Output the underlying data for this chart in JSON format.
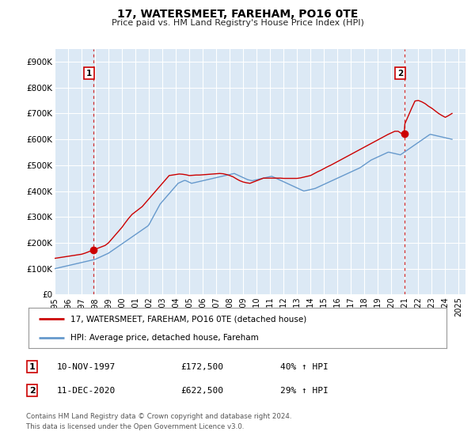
{
  "title": "17, WATERSMEET, FAREHAM, PO16 0TE",
  "subtitle": "Price paid vs. HM Land Registry's House Price Index (HPI)",
  "bg_color": "#ffffff",
  "plot_bg_color": "#dce9f5",
  "grid_color": "#ffffff",
  "xlim": [
    1995.0,
    2025.5
  ],
  "ylim": [
    0,
    950000
  ],
  "yticks": [
    0,
    100000,
    200000,
    300000,
    400000,
    500000,
    600000,
    700000,
    800000,
    900000
  ],
  "ytick_labels": [
    "£0",
    "£100K",
    "£200K",
    "£300K",
    "£400K",
    "£500K",
    "£600K",
    "£700K",
    "£800K",
    "£900K"
  ],
  "xticks": [
    1995,
    1996,
    1997,
    1998,
    1999,
    2000,
    2001,
    2002,
    2003,
    2004,
    2005,
    2006,
    2007,
    2008,
    2009,
    2010,
    2011,
    2012,
    2013,
    2014,
    2015,
    2016,
    2017,
    2018,
    2019,
    2020,
    2021,
    2022,
    2023,
    2024,
    2025
  ],
  "sale1_x": 1997.86,
  "sale1_y": 172500,
  "sale1_label": "1",
  "sale1_date": "10-NOV-1997",
  "sale1_price": "£172,500",
  "sale1_hpi": "40% ↑ HPI",
  "sale2_x": 2020.95,
  "sale2_y": 622500,
  "sale2_label": "2",
  "sale2_date": "11-DEC-2020",
  "sale2_price": "£622,500",
  "sale2_hpi": "29% ↑ HPI",
  "property_color": "#cc0000",
  "hpi_color": "#6699cc",
  "legend_label1": "17, WATERSMEET, FAREHAM, PO16 0TE (detached house)",
  "legend_label2": "HPI: Average price, detached house, Fareham",
  "footer1": "Contains HM Land Registry data © Crown copyright and database right 2024.",
  "footer2": "This data is licensed under the Open Government Licence v3.0.",
  "hpi_x": [
    1995.0,
    1995.083,
    1995.167,
    1995.25,
    1995.333,
    1995.417,
    1995.5,
    1995.583,
    1995.667,
    1995.75,
    1995.833,
    1995.917,
    1996.0,
    1996.083,
    1996.167,
    1996.25,
    1996.333,
    1996.417,
    1996.5,
    1996.583,
    1996.667,
    1996.75,
    1996.833,
    1996.917,
    1997.0,
    1997.083,
    1997.167,
    1997.25,
    1997.333,
    1997.417,
    1997.5,
    1997.583,
    1997.667,
    1997.75,
    1997.833,
    1997.917,
    1998.0,
    1998.083,
    1998.167,
    1998.25,
    1998.333,
    1998.417,
    1998.5,
    1998.583,
    1998.667,
    1998.75,
    1998.833,
    1998.917,
    1999.0,
    1999.083,
    1999.167,
    1999.25,
    1999.333,
    1999.417,
    1999.5,
    1999.583,
    1999.667,
    1999.75,
    1999.833,
    1999.917,
    2000.0,
    2000.083,
    2000.167,
    2000.25,
    2000.333,
    2000.417,
    2000.5,
    2000.583,
    2000.667,
    2000.75,
    2000.833,
    2000.917,
    2001.0,
    2001.083,
    2001.167,
    2001.25,
    2001.333,
    2001.417,
    2001.5,
    2001.583,
    2001.667,
    2001.75,
    2001.833,
    2001.917,
    2002.0,
    2002.083,
    2002.167,
    2002.25,
    2002.333,
    2002.417,
    2002.5,
    2002.583,
    2002.667,
    2002.75,
    2002.833,
    2002.917,
    2003.0,
    2003.083,
    2003.167,
    2003.25,
    2003.333,
    2003.417,
    2003.5,
    2003.583,
    2003.667,
    2003.75,
    2003.833,
    2003.917,
    2004.0,
    2004.083,
    2004.167,
    2004.25,
    2004.333,
    2004.417,
    2004.5,
    2004.583,
    2004.667,
    2004.75,
    2004.833,
    2004.917,
    2005.0,
    2005.083,
    2005.167,
    2005.25,
    2005.333,
    2005.417,
    2005.5,
    2005.583,
    2005.667,
    2005.75,
    2005.833,
    2005.917,
    2006.0,
    2006.083,
    2006.167,
    2006.25,
    2006.333,
    2006.417,
    2006.5,
    2006.583,
    2006.667,
    2006.75,
    2006.833,
    2006.917,
    2007.0,
    2007.083,
    2007.167,
    2007.25,
    2007.333,
    2007.417,
    2007.5,
    2007.583,
    2007.667,
    2007.75,
    2007.833,
    2007.917,
    2008.0,
    2008.083,
    2008.167,
    2008.25,
    2008.333,
    2008.417,
    2008.5,
    2008.583,
    2008.667,
    2008.75,
    2008.833,
    2008.917,
    2009.0,
    2009.083,
    2009.167,
    2009.25,
    2009.333,
    2009.417,
    2009.5,
    2009.583,
    2009.667,
    2009.75,
    2009.833,
    2009.917,
    2010.0,
    2010.083,
    2010.167,
    2010.25,
    2010.333,
    2010.417,
    2010.5,
    2010.583,
    2010.667,
    2010.75,
    2010.833,
    2010.917,
    2011.0,
    2011.083,
    2011.167,
    2011.25,
    2011.333,
    2011.417,
    2011.5,
    2011.583,
    2011.667,
    2011.75,
    2011.833,
    2011.917,
    2012.0,
    2012.083,
    2012.167,
    2012.25,
    2012.333,
    2012.417,
    2012.5,
    2012.583,
    2012.667,
    2012.75,
    2012.833,
    2012.917,
    2013.0,
    2013.083,
    2013.167,
    2013.25,
    2013.333,
    2013.417,
    2013.5,
    2013.583,
    2013.667,
    2013.75,
    2013.833,
    2013.917,
    2014.0,
    2014.083,
    2014.167,
    2014.25,
    2014.333,
    2014.417,
    2014.5,
    2014.583,
    2014.667,
    2014.75,
    2014.833,
    2014.917,
    2015.0,
    2015.083,
    2015.167,
    2015.25,
    2015.333,
    2015.417,
    2015.5,
    2015.583,
    2015.667,
    2015.75,
    2015.833,
    2015.917,
    2016.0,
    2016.083,
    2016.167,
    2016.25,
    2016.333,
    2016.417,
    2016.5,
    2016.583,
    2016.667,
    2016.75,
    2016.833,
    2016.917,
    2017.0,
    2017.083,
    2017.167,
    2017.25,
    2017.333,
    2017.417,
    2017.5,
    2017.583,
    2017.667,
    2017.75,
    2017.833,
    2017.917,
    2018.0,
    2018.083,
    2018.167,
    2018.25,
    2018.333,
    2018.417,
    2018.5,
    2018.583,
    2018.667,
    2018.75,
    2018.833,
    2018.917,
    2019.0,
    2019.083,
    2019.167,
    2019.25,
    2019.333,
    2019.417,
    2019.5,
    2019.583,
    2019.667,
    2019.75,
    2019.833,
    2019.917,
    2020.0,
    2020.083,
    2020.167,
    2020.25,
    2020.333,
    2020.417,
    2020.5,
    2020.583,
    2020.667,
    2020.75,
    2020.833,
    2020.917,
    2021.0,
    2021.083,
    2021.167,
    2021.25,
    2021.333,
    2021.417,
    2021.5,
    2021.583,
    2021.667,
    2021.75,
    2021.833,
    2021.917,
    2022.0,
    2022.083,
    2022.167,
    2022.25,
    2022.333,
    2022.417,
    2022.5,
    2022.583,
    2022.667,
    2022.75,
    2022.833,
    2022.917,
    2023.0,
    2023.083,
    2023.167,
    2023.25,
    2023.333,
    2023.417,
    2023.5,
    2023.583,
    2023.667,
    2023.75,
    2023.833,
    2023.917,
    2024.0,
    2024.083,
    2024.167,
    2024.25,
    2024.333,
    2024.417,
    2024.5
  ],
  "hpi_y": [
    100000,
    101000,
    102000,
    103000,
    104000,
    105000,
    106000,
    107000,
    108000,
    109000,
    110000,
    111000,
    112000,
    113000,
    114000,
    115000,
    116000,
    117000,
    118000,
    119000,
    120000,
    121000,
    122000,
    123000,
    124000,
    125000,
    126000,
    127000,
    128000,
    129000,
    130000,
    131000,
    132000,
    133000,
    134000,
    135000,
    136000,
    138000,
    140000,
    142000,
    144000,
    146000,
    148000,
    150000,
    152000,
    154000,
    156000,
    158000,
    160000,
    163000,
    166000,
    169000,
    172000,
    175000,
    178000,
    181000,
    184000,
    187000,
    190000,
    193000,
    196000,
    199000,
    202000,
    205000,
    208000,
    211000,
    214000,
    217000,
    220000,
    223000,
    226000,
    229000,
    232000,
    235000,
    238000,
    241000,
    244000,
    247000,
    250000,
    253000,
    256000,
    259000,
    262000,
    265000,
    270000,
    278000,
    286000,
    294000,
    302000,
    310000,
    318000,
    326000,
    334000,
    342000,
    350000,
    355000,
    360000,
    365000,
    370000,
    375000,
    380000,
    385000,
    390000,
    395000,
    400000,
    405000,
    410000,
    415000,
    420000,
    425000,
    430000,
    432000,
    434000,
    436000,
    438000,
    440000,
    441000,
    440000,
    438000,
    436000,
    434000,
    432000,
    430000,
    431000,
    432000,
    433000,
    434000,
    435000,
    436000,
    437000,
    438000,
    439000,
    440000,
    441000,
    442000,
    443000,
    444000,
    445000,
    446000,
    447000,
    448000,
    449000,
    450000,
    451000,
    452000,
    453000,
    454000,
    455000,
    456000,
    457000,
    458000,
    459000,
    460000,
    461000,
    462000,
    463000,
    464000,
    465000,
    466000,
    467000,
    468000,
    466000,
    464000,
    462000,
    460000,
    458000,
    456000,
    454000,
    452000,
    450000,
    448000,
    446000,
    444000,
    443000,
    442000,
    441000,
    440000,
    441000,
    442000,
    443000,
    444000,
    445000,
    446000,
    447000,
    448000,
    449000,
    450000,
    451000,
    452000,
    453000,
    454000,
    455000,
    456000,
    457000,
    456000,
    454000,
    452000,
    450000,
    448000,
    446000,
    444000,
    442000,
    440000,
    438000,
    436000,
    434000,
    432000,
    430000,
    428000,
    426000,
    424000,
    422000,
    420000,
    418000,
    416000,
    414000,
    412000,
    410000,
    408000,
    406000,
    404000,
    402000,
    400000,
    401000,
    402000,
    403000,
    404000,
    405000,
    406000,
    407000,
    408000,
    409000,
    410000,
    412000,
    414000,
    416000,
    418000,
    420000,
    422000,
    424000,
    426000,
    428000,
    430000,
    432000,
    434000,
    436000,
    438000,
    440000,
    442000,
    444000,
    446000,
    448000,
    450000,
    452000,
    454000,
    456000,
    458000,
    460000,
    462000,
    464000,
    466000,
    468000,
    470000,
    472000,
    474000,
    476000,
    478000,
    480000,
    482000,
    484000,
    486000,
    488000,
    490000,
    493000,
    496000,
    499000,
    502000,
    505000,
    508000,
    511000,
    514000,
    517000,
    520000,
    522000,
    524000,
    526000,
    528000,
    530000,
    532000,
    534000,
    536000,
    538000,
    540000,
    542000,
    544000,
    546000,
    548000,
    550000,
    550000,
    549000,
    548000,
    547000,
    546000,
    545000,
    544000,
    543000,
    542000,
    541000,
    540000,
    543000,
    546000,
    549000,
    552000,
    555000,
    558000,
    561000,
    564000,
    567000,
    570000,
    573000,
    576000,
    579000,
    582000,
    585000,
    588000,
    591000,
    594000,
    597000,
    600000,
    603000,
    606000,
    609000,
    612000,
    615000,
    618000,
    619000,
    618000,
    617000,
    616000,
    615000,
    614000,
    613000,
    612000,
    611000,
    610000,
    609000,
    608000,
    607000,
    606000,
    605000,
    604000,
    603000,
    602000,
    601000,
    600000,
    599000,
    598000,
    597000,
    596000,
    595000,
    594000,
    593000,
    592000,
    591000,
    590000,
    589000,
    588000,
    587000,
    536000,
    537000,
    538000,
    539000
  ],
  "prop_x": [
    1995.0,
    1995.25,
    1995.5,
    1995.75,
    1996.0,
    1996.25,
    1996.5,
    1996.75,
    1997.0,
    1997.25,
    1997.5,
    1997.75,
    1997.86,
    1997.9,
    1998.0,
    1998.25,
    1998.5,
    1998.75,
    1999.0,
    1999.25,
    1999.5,
    1999.75,
    2000.0,
    2000.25,
    2000.5,
    2000.75,
    2001.0,
    2001.25,
    2001.5,
    2001.75,
    2002.0,
    2002.25,
    2002.5,
    2002.75,
    2003.0,
    2003.25,
    2003.5,
    2003.75,
    2004.0,
    2004.25,
    2004.5,
    2004.75,
    2005.0,
    2005.25,
    2005.5,
    2005.75,
    2006.0,
    2006.25,
    2006.5,
    2006.75,
    2007.0,
    2007.25,
    2007.5,
    2007.75,
    2008.0,
    2008.25,
    2008.5,
    2008.75,
    2009.0,
    2009.25,
    2009.5,
    2009.75,
    2010.0,
    2010.25,
    2010.5,
    2010.75,
    2011.0,
    2011.25,
    2011.5,
    2011.75,
    2012.0,
    2012.25,
    2012.5,
    2012.75,
    2013.0,
    2013.25,
    2013.5,
    2013.75,
    2014.0,
    2014.25,
    2014.5,
    2014.75,
    2015.0,
    2015.25,
    2015.5,
    2015.75,
    2016.0,
    2016.25,
    2016.5,
    2016.75,
    2017.0,
    2017.25,
    2017.5,
    2017.75,
    2018.0,
    2018.25,
    2018.5,
    2018.75,
    2019.0,
    2019.25,
    2019.5,
    2019.75,
    2020.0,
    2020.25,
    2020.5,
    2020.75,
    2020.95,
    2021.0,
    2021.25,
    2021.5,
    2021.75,
    2022.0,
    2022.25,
    2022.5,
    2022.75,
    2023.0,
    2023.25,
    2023.5,
    2023.75,
    2024.0,
    2024.25,
    2024.5
  ],
  "prop_y": [
    140000,
    142000,
    144000,
    146000,
    148000,
    150000,
    152000,
    154000,
    156000,
    160000,
    165000,
    170000,
    172500,
    172500,
    175000,
    180000,
    185000,
    190000,
    200000,
    215000,
    230000,
    245000,
    260000,
    278000,
    295000,
    310000,
    320000,
    330000,
    340000,
    355000,
    370000,
    385000,
    400000,
    415000,
    430000,
    445000,
    460000,
    462000,
    464000,
    466000,
    465000,
    463000,
    460000,
    461000,
    462000,
    462000,
    463000,
    464000,
    465000,
    466000,
    467000,
    468000,
    467000,
    464000,
    460000,
    455000,
    447000,
    440000,
    435000,
    432000,
    430000,
    435000,
    440000,
    445000,
    450000,
    450000,
    450000,
    450000,
    450000,
    450000,
    449000,
    449000,
    449000,
    449000,
    449000,
    451000,
    454000,
    457000,
    460000,
    467000,
    474000,
    480000,
    487000,
    494000,
    500000,
    507000,
    514000,
    521000,
    528000,
    535000,
    542000,
    549000,
    556000,
    563000,
    570000,
    577000,
    584000,
    591000,
    598000,
    605000,
    612000,
    619000,
    625000,
    631000,
    631000,
    622500,
    622500,
    660000,
    690000,
    720000,
    748000,
    750000,
    745000,
    738000,
    728000,
    720000,
    710000,
    700000,
    692000,
    685000,
    692000,
    700000
  ]
}
